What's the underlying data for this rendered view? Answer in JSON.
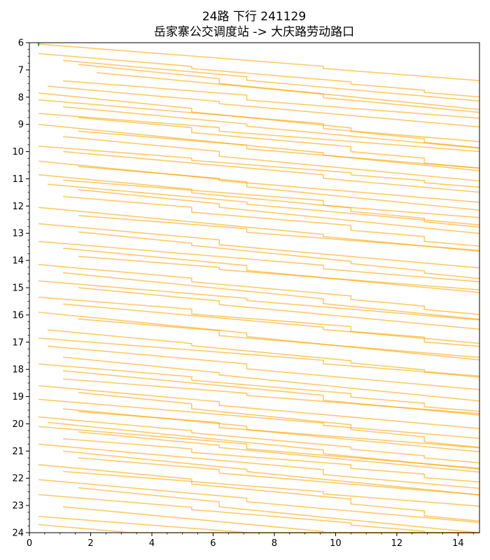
{
  "chart_data": {
    "type": "line",
    "title": "24路 下行 241129",
    "subtitle": "岳家寨公交调度站 -> 大庆路劳动路口",
    "xlim": [
      0,
      14.7
    ],
    "ylim": [
      6,
      24
    ],
    "y_inverted": true,
    "x_ticks": [
      0,
      2,
      4,
      6,
      8,
      10,
      12,
      14
    ],
    "y_ticks": [
      6,
      7,
      8,
      9,
      10,
      11,
      12,
      13,
      14,
      15,
      16,
      17,
      18,
      19,
      20,
      21,
      22,
      23,
      24
    ],
    "grid": false,
    "line_color": "#FFA500",
    "accent_color": "#2CA02C",
    "stop_positions": [
      0.3,
      1.1,
      1.6,
      2.2,
      3.2,
      4.2,
      5.3,
      6.2,
      7.1,
      8.5,
      9.6,
      10.5,
      11.6,
      12.9,
      13.5,
      14.7
    ],
    "dwell_stops": [
      5.3,
      6.2,
      7.1,
      9.6,
      10.5,
      12.9
    ],
    "series_start_points": [
      {
        "x": 0.3,
        "y": 6.05
      },
      {
        "x": 1.1,
        "y": 6.65
      },
      {
        "x": 1.6,
        "y": 6.8
      },
      {
        "x": 0.3,
        "y": 6.4
      },
      {
        "x": 2.2,
        "y": 7.1
      },
      {
        "x": 1.1,
        "y": 7.4
      },
      {
        "x": 0.6,
        "y": 7.6
      },
      {
        "x": 0.3,
        "y": 7.85
      },
      {
        "x": 0.3,
        "y": 8.1
      },
      {
        "x": 1.1,
        "y": 8.35
      },
      {
        "x": 0.3,
        "y": 8.6
      },
      {
        "x": 1.6,
        "y": 8.75
      },
      {
        "x": 0.3,
        "y": 9.0
      },
      {
        "x": 1.6,
        "y": 9.25
      },
      {
        "x": 1.1,
        "y": 9.45
      },
      {
        "x": 0.3,
        "y": 9.8
      },
      {
        "x": 1.1,
        "y": 10.0
      },
      {
        "x": 0.3,
        "y": 10.35
      },
      {
        "x": 1.6,
        "y": 10.55
      },
      {
        "x": 0.3,
        "y": 10.85
      },
      {
        "x": 1.1,
        "y": 11.05
      },
      {
        "x": 0.6,
        "y": 11.2
      },
      {
        "x": 1.6,
        "y": 11.4
      },
      {
        "x": 1.1,
        "y": 11.65
      },
      {
        "x": 0.3,
        "y": 12.05
      },
      {
        "x": 1.6,
        "y": 12.35
      },
      {
        "x": 0.3,
        "y": 12.65
      },
      {
        "x": 1.6,
        "y": 12.95
      },
      {
        "x": 0.3,
        "y": 13.3
      },
      {
        "x": 1.1,
        "y": 13.55
      },
      {
        "x": 1.6,
        "y": 13.85
      },
      {
        "x": 0.3,
        "y": 14.15
      },
      {
        "x": 1.1,
        "y": 14.45
      },
      {
        "x": 0.3,
        "y": 14.75
      },
      {
        "x": 1.6,
        "y": 15.0
      },
      {
        "x": 0.3,
        "y": 15.35
      },
      {
        "x": 1.1,
        "y": 15.6
      },
      {
        "x": 0.3,
        "y": 15.9
      },
      {
        "x": 1.6,
        "y": 16.15
      },
      {
        "x": 0.6,
        "y": 16.55
      },
      {
        "x": 0.3,
        "y": 16.85
      },
      {
        "x": 0.6,
        "y": 17.15
      },
      {
        "x": 1.1,
        "y": 17.55
      },
      {
        "x": 0.3,
        "y": 17.8
      },
      {
        "x": 1.1,
        "y": 18.05
      },
      {
        "x": 1.1,
        "y": 18.35
      },
      {
        "x": 0.3,
        "y": 18.6
      },
      {
        "x": 1.6,
        "y": 18.85
      },
      {
        "x": 0.3,
        "y": 19.1
      },
      {
        "x": 1.1,
        "y": 19.45
      },
      {
        "x": 1.6,
        "y": 19.55
      },
      {
        "x": 0.3,
        "y": 19.75
      },
      {
        "x": 0.6,
        "y": 19.95
      },
      {
        "x": 0.3,
        "y": 20.1
      },
      {
        "x": 1.6,
        "y": 20.3
      },
      {
        "x": 1.1,
        "y": 20.55
      },
      {
        "x": 0.3,
        "y": 20.75
      },
      {
        "x": 1.1,
        "y": 21.0
      },
      {
        "x": 1.6,
        "y": 21.25
      },
      {
        "x": 0.3,
        "y": 21.5
      },
      {
        "x": 1.1,
        "y": 21.75
      },
      {
        "x": 0.3,
        "y": 22.05
      },
      {
        "x": 1.6,
        "y": 22.35
      },
      {
        "x": 0.3,
        "y": 22.6
      },
      {
        "x": 1.1,
        "y": 23.05
      },
      {
        "x": 0.3,
        "y": 23.4
      },
      {
        "x": 0.3,
        "y": 23.7
      }
    ],
    "travel_minutes_per_km": 6.2,
    "x_axis_label": "",
    "y_axis_label": ""
  }
}
